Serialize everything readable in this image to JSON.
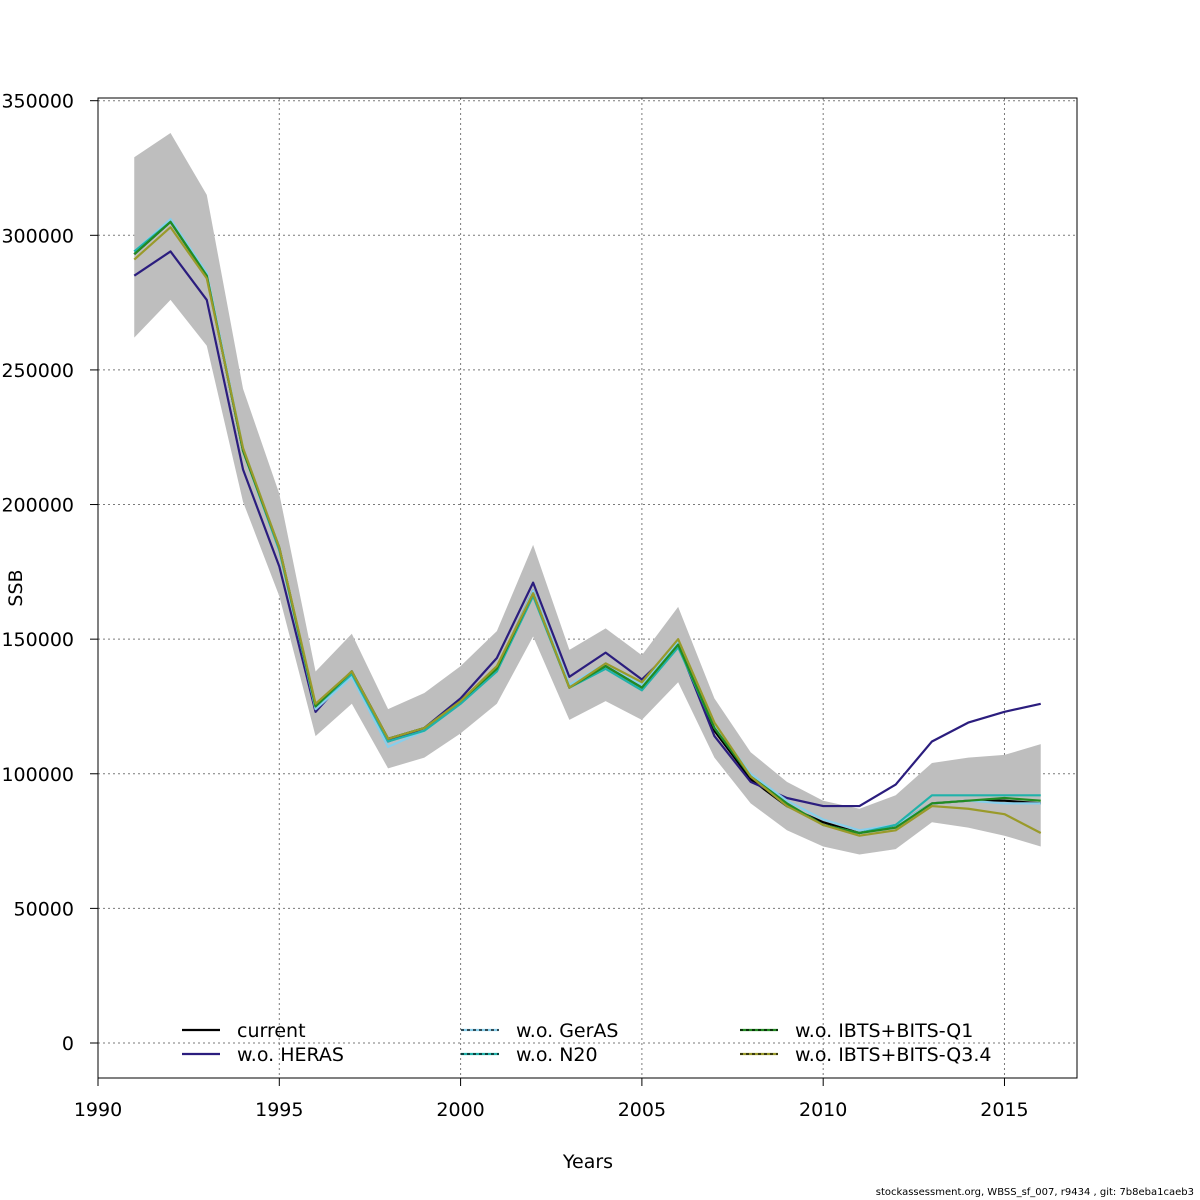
{
  "footer": "stockassessment.org, WBSS_sf_007, r9434 , git: 7b8eba1caeb3",
  "chart_data": {
    "type": "line",
    "xlabel": "Years",
    "ylabel": "SSB",
    "xlim": [
      1990,
      2017
    ],
    "ylim": [
      -13000,
      351000
    ],
    "x_ticks": [
      1990,
      1995,
      2000,
      2005,
      2010,
      2015
    ],
    "y_ticks": [
      0,
      50000,
      100000,
      150000,
      200000,
      250000,
      300000,
      350000
    ],
    "grid": true,
    "legend_position": "bottom",
    "x": [
      1991,
      1992,
      1993,
      1994,
      1995,
      1996,
      1997,
      1998,
      1999,
      2000,
      2001,
      2002,
      2003,
      2004,
      2005,
      2006,
      2007,
      2008,
      2009,
      2010,
      2011,
      2012,
      2013,
      2014,
      2015,
      2016
    ],
    "confidence_band": {
      "color": "#bebebe",
      "upper": [
        329000,
        338000,
        315000,
        243000,
        204000,
        138000,
        152000,
        124000,
        130000,
        140000,
        153000,
        185000,
        146000,
        154000,
        144000,
        162000,
        128000,
        108000,
        97000,
        90000,
        87000,
        92000,
        104000,
        106000,
        107000,
        111000
      ],
      "lower": [
        262000,
        276000,
        259000,
        201000,
        166000,
        114000,
        126000,
        102000,
        106000,
        115000,
        126000,
        151000,
        120000,
        127000,
        120000,
        134000,
        106000,
        89000,
        79000,
        73000,
        70000,
        72000,
        82000,
        80000,
        77000,
        73000
      ]
    },
    "series": [
      {
        "name": "current",
        "color": "#000000",
        "dashed": false,
        "values": [
          293000,
          305000,
          285000,
          220000,
          184000,
          125000,
          138000,
          113000,
          117000,
          127000,
          139000,
          168000,
          132000,
          140000,
          132000,
          148000,
          116000,
          98000,
          88000,
          82000,
          78000,
          81000,
          89000,
          90000,
          90000,
          89000
        ]
      },
      {
        "name": "w.o. HERAS",
        "color": "#2b1d7e",
        "dashed": false,
        "values": [
          285000,
          294000,
          276000,
          213000,
          177000,
          123000,
          138000,
          112000,
          117000,
          128000,
          143000,
          171000,
          136000,
          145000,
          135000,
          148000,
          114000,
          97000,
          91000,
          88000,
          88000,
          96000,
          112000,
          119000,
          123000,
          126000
        ]
      },
      {
        "name": "w.o. GerAS",
        "color": "#87ceeb",
        "dashed": true,
        "values": [
          294000,
          306000,
          286000,
          221000,
          184000,
          124000,
          136000,
          110000,
          116000,
          126000,
          139000,
          168000,
          133000,
          141000,
          133000,
          149000,
          118000,
          100000,
          90000,
          83000,
          79000,
          81000,
          89000,
          90000,
          89000,
          89000
        ]
      },
      {
        "name": "w.o. N20",
        "color": "#20b2aa",
        "dashed": true,
        "values": [
          294000,
          305000,
          285000,
          220000,
          183000,
          125000,
          137000,
          112000,
          116000,
          126000,
          138000,
          166000,
          132000,
          139000,
          131000,
          147000,
          117000,
          99000,
          89000,
          81000,
          78000,
          81000,
          92000,
          92000,
          92000,
          92000
        ]
      },
      {
        "name": "w.o. IBTS+BITS-Q1",
        "color": "#228b22",
        "dashed": true,
        "values": [
          293000,
          305000,
          285000,
          220000,
          184000,
          125000,
          138000,
          113000,
          117000,
          127000,
          139000,
          167000,
          132000,
          140000,
          132000,
          148000,
          117000,
          99000,
          89000,
          81000,
          78000,
          80000,
          89000,
          90000,
          91000,
          90000
        ]
      },
      {
        "name": "w.o. IBTS+BITS-Q3.4",
        "color": "#9a9a2a",
        "dashed": true,
        "values": [
          291000,
          303000,
          284000,
          221000,
          184000,
          126000,
          138000,
          113000,
          117000,
          127000,
          140000,
          167000,
          132000,
          141000,
          134000,
          150000,
          119000,
          99000,
          88000,
          81000,
          77000,
          79000,
          88000,
          87000,
          85000,
          78000
        ]
      }
    ]
  }
}
